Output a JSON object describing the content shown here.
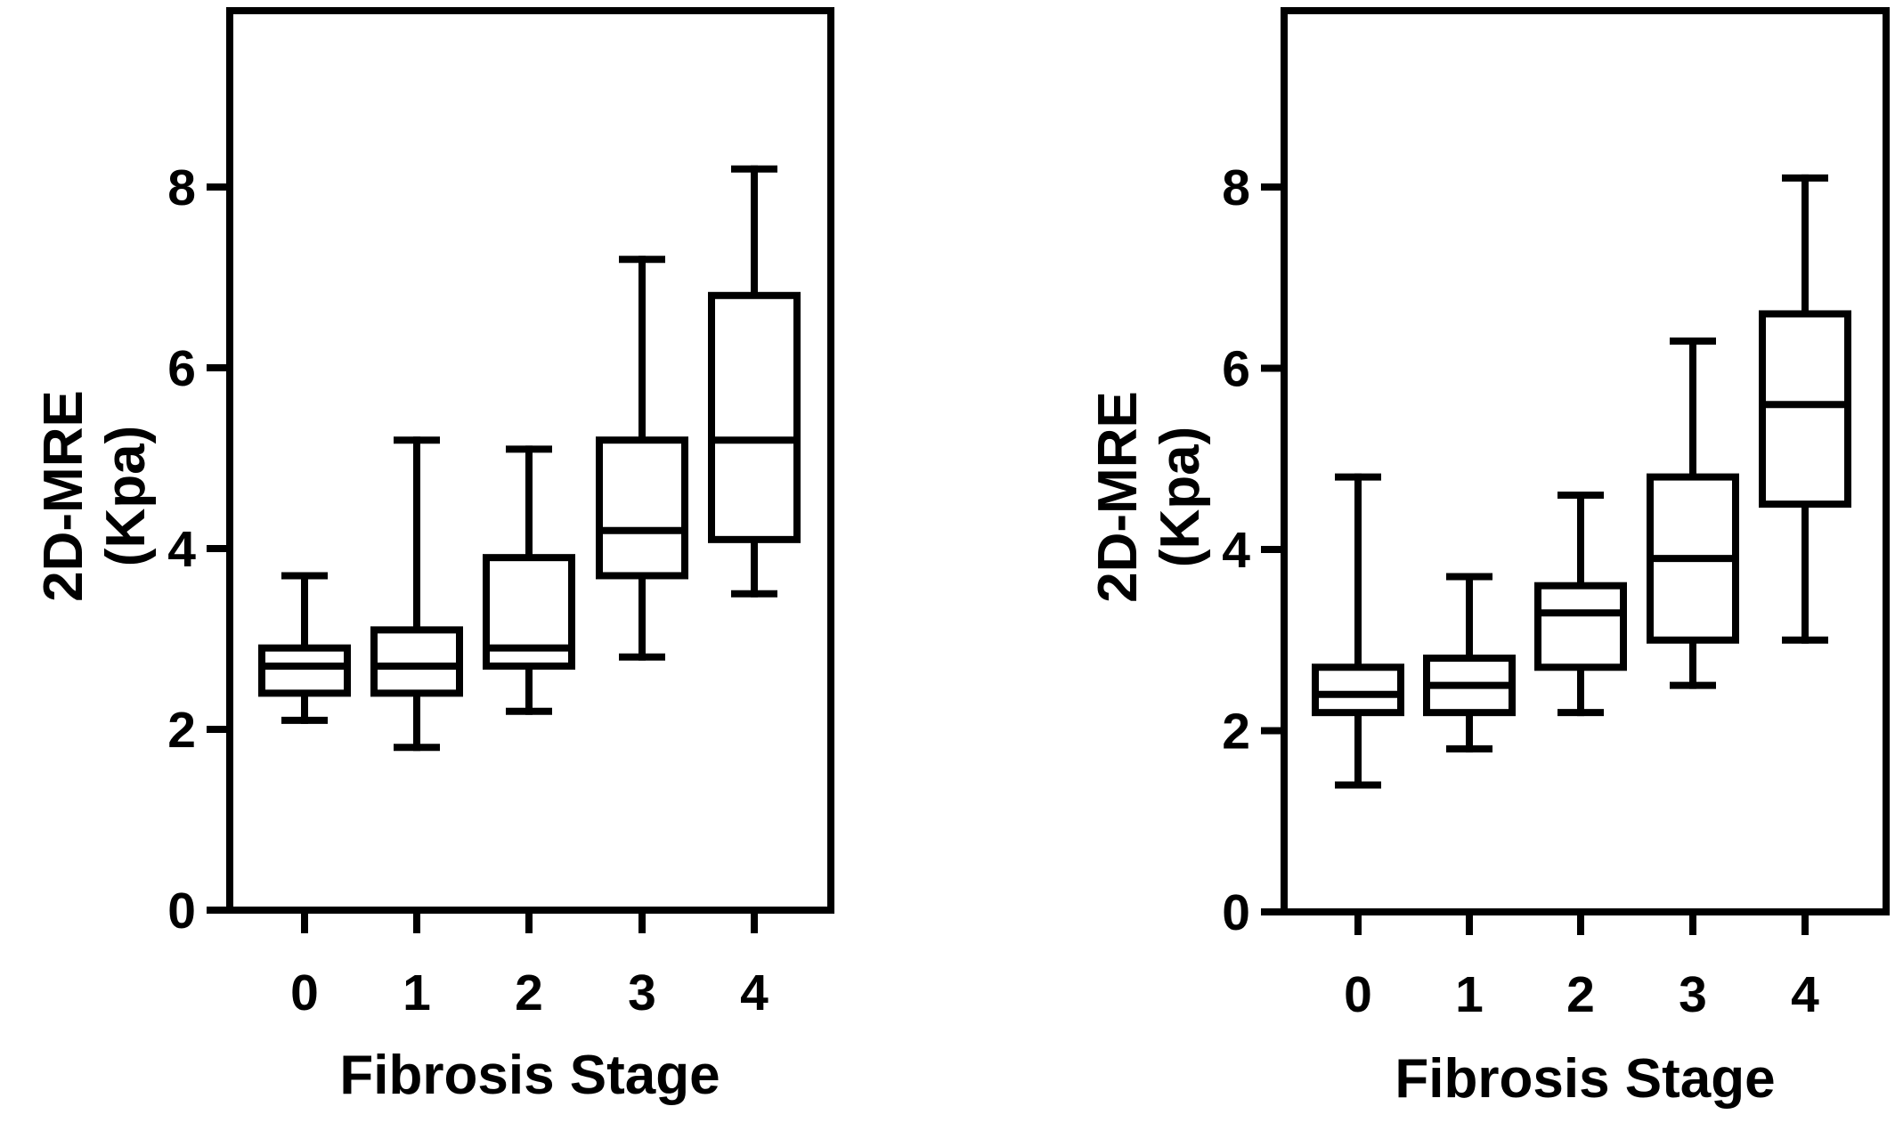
{
  "chart_data": [
    {
      "type": "box",
      "xlabel": "Fibrosis Stage",
      "ylabel_lines": [
        "2D-MRE",
        "(Kpa)"
      ],
      "ylim": [
        0,
        10
      ],
      "yticks": [
        0,
        2,
        4,
        6,
        8
      ],
      "categories": [
        "0",
        "1",
        "2",
        "3",
        "4"
      ],
      "boxes": [
        {
          "category": "0",
          "min": 2.1,
          "q1": 2.4,
          "median": 2.7,
          "q3": 2.9,
          "max": 3.7
        },
        {
          "category": "1",
          "min": 1.8,
          "q1": 2.4,
          "median": 2.7,
          "q3": 3.1,
          "max": 5.2
        },
        {
          "category": "2",
          "min": 2.2,
          "q1": 2.7,
          "median": 2.9,
          "q3": 3.9,
          "max": 5.1
        },
        {
          "category": "3",
          "min": 2.8,
          "q1": 3.7,
          "median": 4.2,
          "q3": 5.2,
          "max": 7.2
        },
        {
          "category": "4",
          "min": 3.5,
          "q1": 4.1,
          "median": 5.2,
          "q3": 6.8,
          "max": 8.2
        }
      ]
    },
    {
      "type": "box",
      "xlabel": "Fibrosis Stage",
      "ylabel_lines": [
        "2D-MRE",
        "(Kpa)"
      ],
      "ylim": [
        0,
        10
      ],
      "yticks": [
        0,
        2,
        4,
        6,
        8
      ],
      "categories": [
        "0",
        "1",
        "2",
        "3",
        "4"
      ],
      "boxes": [
        {
          "category": "0",
          "min": 1.4,
          "q1": 2.2,
          "median": 2.4,
          "q3": 2.7,
          "max": 4.8
        },
        {
          "category": "1",
          "min": 1.8,
          "q1": 2.2,
          "median": 2.5,
          "q3": 2.8,
          "max": 3.7
        },
        {
          "category": "2",
          "min": 2.2,
          "q1": 2.7,
          "median": 3.3,
          "q3": 3.6,
          "max": 4.6
        },
        {
          "category": "3",
          "min": 2.5,
          "q1": 3.0,
          "median": 3.9,
          "q3": 4.8,
          "max": 6.3
        },
        {
          "category": "4",
          "min": 3.0,
          "q1": 4.5,
          "median": 5.6,
          "q3": 6.6,
          "max": 8.1
        }
      ]
    }
  ]
}
